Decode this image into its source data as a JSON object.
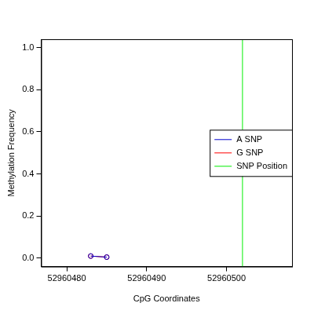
{
  "chart_data": {
    "type": "scatter",
    "x_label": "CpG Coordinates",
    "y_label": "Methylation Frequency",
    "series": [
      {
        "name": "A SNP",
        "color": "#0000cd",
        "x": [
          52960483,
          52960485
        ],
        "values": [
          0.01,
          0.005
        ],
        "marker": "circle",
        "line_style": "solid"
      },
      {
        "name": "G SNP",
        "color": "#ff0000",
        "x": [
          52960483,
          52960485
        ],
        "values": [
          0.01,
          0.005
        ],
        "marker": "circle",
        "line_style": "solid"
      },
      {
        "name": "SNP Position",
        "color": "#00ee00",
        "type": "vline",
        "x": [
          52960502
        ]
      }
    ],
    "xlim": [
      52960476.8,
      52960508.2
    ],
    "xticks": [
      52960480,
      52960490,
      52960500
    ],
    "ylim": [
      -0.04,
      1.04
    ],
    "yticks": [
      {
        "value": 0,
        "label": "0.0"
      },
      0.2,
      0.4,
      0.6,
      0.8,
      {
        "value": 1,
        "label": "1.0"
      }
    ],
    "grid": false,
    "legend": "right"
  }
}
